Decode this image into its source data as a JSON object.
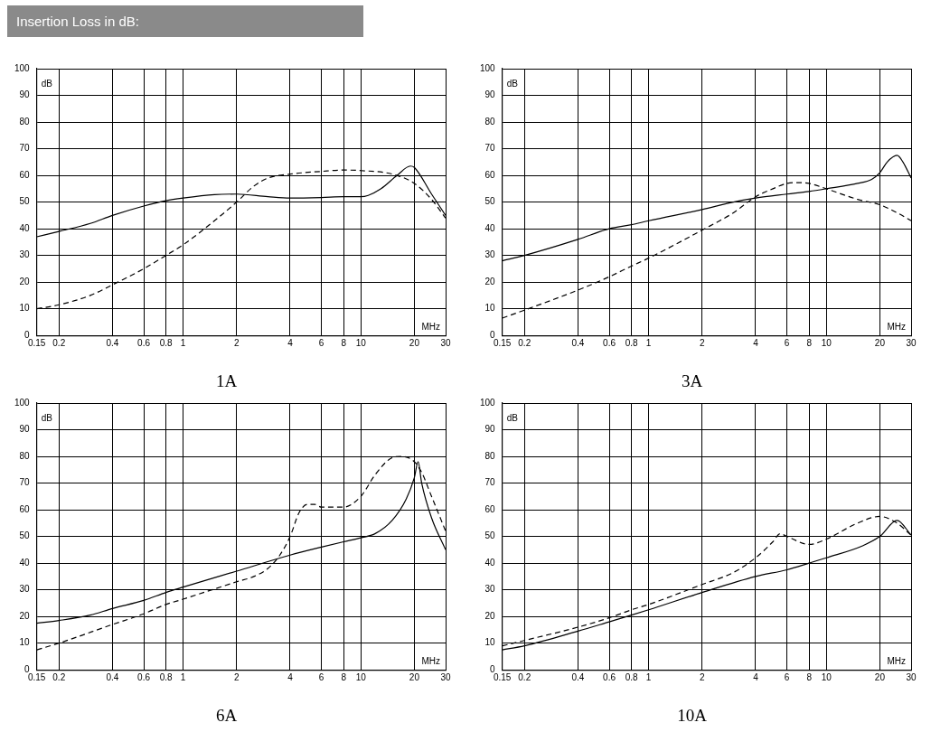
{
  "chart_data": [
    {
      "type": "other",
      "title": "Insertion Loss in dB:"
    },
    {
      "type": "line",
      "title": "1A",
      "xlabel": "MHz",
      "ylabel": "dB",
      "log": "x",
      "grid": true,
      "marker": "none",
      "xlim": [
        0.15,
        30
      ],
      "xticks": [
        0.15,
        0.2,
        0.4,
        0.6,
        0.8,
        1,
        2,
        4,
        6,
        8,
        10,
        20,
        30
      ],
      "ylim": [
        0,
        100
      ],
      "yticks": [
        0,
        10,
        20,
        30,
        40,
        50,
        60,
        70,
        80,
        90,
        100
      ],
      "series": [
        {
          "color": "#000000",
          "line_style": "solid",
          "x": [
            0.15,
            0.2,
            0.3,
            0.4,
            0.6,
            0.8,
            1,
            1.5,
            2,
            3,
            4,
            6,
            8,
            10,
            11,
            13,
            16,
            19,
            20,
            25,
            30
          ],
          "values": [
            37,
            39,
            42,
            45,
            48.5,
            50.5,
            51.5,
            52.8,
            53,
            52,
            51.5,
            51.7,
            52,
            52,
            52.5,
            55,
            60,
            63.5,
            63,
            53,
            45
          ]
        },
        {
          "color": "#000000",
          "line_style": "dashed",
          "x": [
            0.15,
            0.2,
            0.3,
            0.4,
            0.6,
            0.8,
            1,
            1.5,
            2,
            2.5,
            3,
            4,
            6,
            8,
            10,
            15,
            20,
            25,
            30
          ],
          "values": [
            10,
            11.5,
            15,
            19,
            25,
            30,
            34,
            43,
            50,
            56,
            59,
            60.5,
            61.5,
            62,
            61.8,
            60.5,
            57,
            51,
            44
          ]
        }
      ]
    },
    {
      "type": "line",
      "title": "3A",
      "xlabel": "MHz",
      "ylabel": "dB",
      "log": "x",
      "grid": true,
      "marker": "none",
      "xlim": [
        0.15,
        30
      ],
      "xticks": [
        0.15,
        0.2,
        0.4,
        0.6,
        0.8,
        1,
        2,
        4,
        6,
        8,
        10,
        20,
        30
      ],
      "ylim": [
        0,
        100
      ],
      "yticks": [
        0,
        10,
        20,
        30,
        40,
        50,
        60,
        70,
        80,
        90,
        100
      ],
      "series": [
        {
          "color": "#000000",
          "line_style": "solid",
          "x": [
            0.15,
            0.2,
            0.4,
            0.6,
            0.8,
            1,
            2,
            3,
            4,
            6,
            8,
            10,
            15,
            18,
            20,
            22,
            25,
            27,
            30
          ],
          "values": [
            28,
            30,
            36,
            40,
            41.5,
            43,
            47.2,
            50,
            51.5,
            53,
            54,
            55,
            57,
            58.5,
            61,
            65,
            67.5,
            65,
            59
          ]
        },
        {
          "color": "#000000",
          "line_style": "dashed",
          "x": [
            0.15,
            0.2,
            0.4,
            0.6,
            0.8,
            1,
            2,
            3,
            4,
            5,
            6,
            7,
            8,
            10,
            15,
            20,
            25,
            30
          ],
          "values": [
            6.5,
            9.5,
            17,
            22,
            26,
            29,
            39.5,
            46,
            52,
            55,
            57,
            57.3,
            57,
            55,
            51,
            49,
            46,
            43
          ]
        }
      ]
    },
    {
      "type": "line",
      "title": "6A",
      "xlabel": "MHz",
      "ylabel": "dB",
      "log": "x",
      "grid": true,
      "marker": "none",
      "xlim": [
        0.15,
        30
      ],
      "xticks": [
        0.15,
        0.2,
        0.4,
        0.6,
        0.8,
        1,
        2,
        4,
        6,
        8,
        10,
        20,
        30
      ],
      "ylim": [
        0,
        100
      ],
      "yticks": [
        0,
        10,
        20,
        30,
        40,
        50,
        60,
        70,
        80,
        90,
        100
      ],
      "series": [
        {
          "color": "#000000",
          "line_style": "solid",
          "x": [
            0.15,
            0.2,
            0.3,
            0.4,
            0.6,
            0.8,
            1,
            2,
            4,
            6,
            8,
            10,
            12,
            15,
            18,
            20,
            21,
            22,
            25,
            30
          ],
          "values": [
            17.5,
            18.5,
            20.5,
            23,
            26,
            29,
            31,
            37,
            43,
            46,
            48,
            49.5,
            51,
            56,
            64,
            72,
            78,
            70,
            57,
            45
          ]
        },
        {
          "color": "#000000",
          "line_style": "dashed",
          "x": [
            0.15,
            0.2,
            0.4,
            0.6,
            0.8,
            1,
            2,
            2.5,
            3,
            3.5,
            4,
            4.5,
            5,
            5.5,
            6,
            8,
            10,
            12,
            15,
            17,
            20,
            22,
            25,
            30
          ],
          "values": [
            7.5,
            10,
            17,
            21,
            24.5,
            26.5,
            33,
            35,
            38,
            43,
            50,
            59,
            62,
            62,
            61,
            61,
            65,
            73,
            79.5,
            80,
            78,
            74,
            65,
            52
          ]
        }
      ]
    },
    {
      "type": "line",
      "title": "10A",
      "xlabel": "MHz",
      "ylabel": "dB",
      "log": "x",
      "grid": true,
      "marker": "none",
      "xlim": [
        0.15,
        30
      ],
      "xticks": [
        0.15,
        0.2,
        0.4,
        0.6,
        0.8,
        1,
        2,
        4,
        6,
        8,
        10,
        20,
        30
      ],
      "ylim": [
        0,
        100
      ],
      "yticks": [
        0,
        10,
        20,
        30,
        40,
        50,
        60,
        70,
        80,
        90,
        100
      ],
      "series": [
        {
          "color": "#000000",
          "line_style": "solid",
          "x": [
            0.15,
            0.2,
            0.4,
            0.6,
            0.8,
            1,
            2,
            4,
            6,
            8,
            10,
            16,
            20,
            25,
            30
          ],
          "values": [
            7.5,
            9,
            14.5,
            18,
            20.5,
            22.5,
            29,
            35,
            37.5,
            40,
            42,
            46.5,
            50,
            56,
            50.5
          ]
        },
        {
          "color": "#000000",
          "line_style": "dashed",
          "x": [
            0.15,
            0.2,
            0.4,
            0.6,
            0.8,
            1,
            2,
            3,
            4,
            5,
            5.5,
            6,
            8,
            10,
            15,
            20,
            25,
            30
          ],
          "values": [
            9,
            11,
            16,
            19.5,
            22.5,
            24.5,
            32,
            36.5,
            42,
            48,
            51,
            50,
            47,
            49,
            55,
            57.5,
            55,
            50.5
          ]
        }
      ]
    }
  ]
}
